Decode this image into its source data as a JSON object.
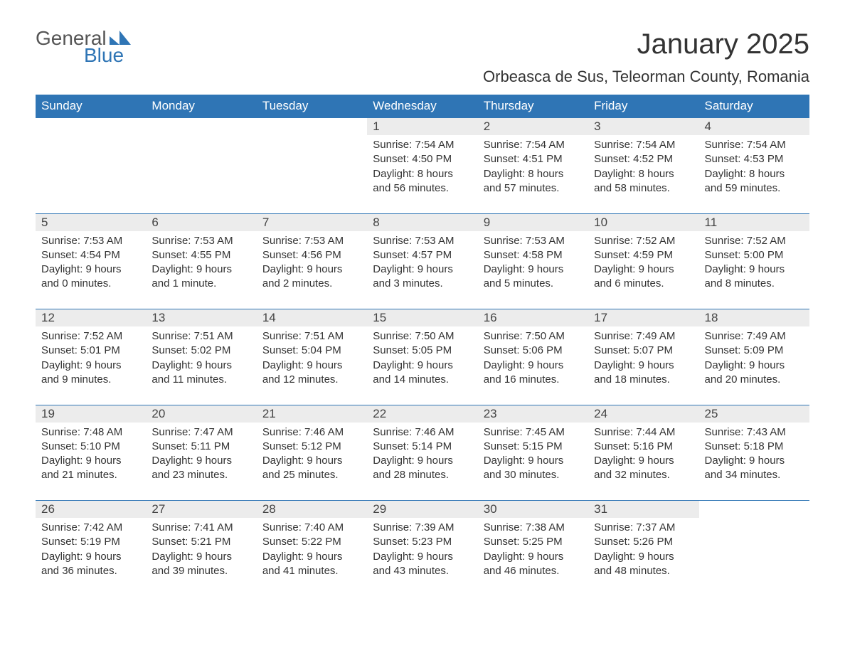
{
  "logo": {
    "word1": "General",
    "word2": "Blue"
  },
  "title": "January 2025",
  "location": "Orbeasca de Sus, Teleorman County, Romania",
  "colors": {
    "header_bg": "#2f75b5",
    "header_text": "#ffffff",
    "daynum_bg": "#ececec",
    "row_border": "#2f75b5",
    "body_text": "#333333",
    "logo_gray": "#555555",
    "logo_blue": "#2f75b5",
    "page_bg": "#ffffff"
  },
  "fonts": {
    "title_size_pt": 30,
    "location_size_pt": 16,
    "header_size_pt": 13,
    "cell_size_pt": 11
  },
  "weekdays": [
    "Sunday",
    "Monday",
    "Tuesday",
    "Wednesday",
    "Thursday",
    "Friday",
    "Saturday"
  ],
  "weeks": [
    [
      null,
      null,
      null,
      {
        "n": "1",
        "sunrise": "Sunrise: 7:54 AM",
        "sunset": "Sunset: 4:50 PM",
        "d1": "Daylight: 8 hours",
        "d2": "and 56 minutes."
      },
      {
        "n": "2",
        "sunrise": "Sunrise: 7:54 AM",
        "sunset": "Sunset: 4:51 PM",
        "d1": "Daylight: 8 hours",
        "d2": "and 57 minutes."
      },
      {
        "n": "3",
        "sunrise": "Sunrise: 7:54 AM",
        "sunset": "Sunset: 4:52 PM",
        "d1": "Daylight: 8 hours",
        "d2": "and 58 minutes."
      },
      {
        "n": "4",
        "sunrise": "Sunrise: 7:54 AM",
        "sunset": "Sunset: 4:53 PM",
        "d1": "Daylight: 8 hours",
        "d2": "and 59 minutes."
      }
    ],
    [
      {
        "n": "5",
        "sunrise": "Sunrise: 7:53 AM",
        "sunset": "Sunset: 4:54 PM",
        "d1": "Daylight: 9 hours",
        "d2": "and 0 minutes."
      },
      {
        "n": "6",
        "sunrise": "Sunrise: 7:53 AM",
        "sunset": "Sunset: 4:55 PM",
        "d1": "Daylight: 9 hours",
        "d2": "and 1 minute."
      },
      {
        "n": "7",
        "sunrise": "Sunrise: 7:53 AM",
        "sunset": "Sunset: 4:56 PM",
        "d1": "Daylight: 9 hours",
        "d2": "and 2 minutes."
      },
      {
        "n": "8",
        "sunrise": "Sunrise: 7:53 AM",
        "sunset": "Sunset: 4:57 PM",
        "d1": "Daylight: 9 hours",
        "d2": "and 3 minutes."
      },
      {
        "n": "9",
        "sunrise": "Sunrise: 7:53 AM",
        "sunset": "Sunset: 4:58 PM",
        "d1": "Daylight: 9 hours",
        "d2": "and 5 minutes."
      },
      {
        "n": "10",
        "sunrise": "Sunrise: 7:52 AM",
        "sunset": "Sunset: 4:59 PM",
        "d1": "Daylight: 9 hours",
        "d2": "and 6 minutes."
      },
      {
        "n": "11",
        "sunrise": "Sunrise: 7:52 AM",
        "sunset": "Sunset: 5:00 PM",
        "d1": "Daylight: 9 hours",
        "d2": "and 8 minutes."
      }
    ],
    [
      {
        "n": "12",
        "sunrise": "Sunrise: 7:52 AM",
        "sunset": "Sunset: 5:01 PM",
        "d1": "Daylight: 9 hours",
        "d2": "and 9 minutes."
      },
      {
        "n": "13",
        "sunrise": "Sunrise: 7:51 AM",
        "sunset": "Sunset: 5:02 PM",
        "d1": "Daylight: 9 hours",
        "d2": "and 11 minutes."
      },
      {
        "n": "14",
        "sunrise": "Sunrise: 7:51 AM",
        "sunset": "Sunset: 5:04 PM",
        "d1": "Daylight: 9 hours",
        "d2": "and 12 minutes."
      },
      {
        "n": "15",
        "sunrise": "Sunrise: 7:50 AM",
        "sunset": "Sunset: 5:05 PM",
        "d1": "Daylight: 9 hours",
        "d2": "and 14 minutes."
      },
      {
        "n": "16",
        "sunrise": "Sunrise: 7:50 AM",
        "sunset": "Sunset: 5:06 PM",
        "d1": "Daylight: 9 hours",
        "d2": "and 16 minutes."
      },
      {
        "n": "17",
        "sunrise": "Sunrise: 7:49 AM",
        "sunset": "Sunset: 5:07 PM",
        "d1": "Daylight: 9 hours",
        "d2": "and 18 minutes."
      },
      {
        "n": "18",
        "sunrise": "Sunrise: 7:49 AM",
        "sunset": "Sunset: 5:09 PM",
        "d1": "Daylight: 9 hours",
        "d2": "and 20 minutes."
      }
    ],
    [
      {
        "n": "19",
        "sunrise": "Sunrise: 7:48 AM",
        "sunset": "Sunset: 5:10 PM",
        "d1": "Daylight: 9 hours",
        "d2": "and 21 minutes."
      },
      {
        "n": "20",
        "sunrise": "Sunrise: 7:47 AM",
        "sunset": "Sunset: 5:11 PM",
        "d1": "Daylight: 9 hours",
        "d2": "and 23 minutes."
      },
      {
        "n": "21",
        "sunrise": "Sunrise: 7:46 AM",
        "sunset": "Sunset: 5:12 PM",
        "d1": "Daylight: 9 hours",
        "d2": "and 25 minutes."
      },
      {
        "n": "22",
        "sunrise": "Sunrise: 7:46 AM",
        "sunset": "Sunset: 5:14 PM",
        "d1": "Daylight: 9 hours",
        "d2": "and 28 minutes."
      },
      {
        "n": "23",
        "sunrise": "Sunrise: 7:45 AM",
        "sunset": "Sunset: 5:15 PM",
        "d1": "Daylight: 9 hours",
        "d2": "and 30 minutes."
      },
      {
        "n": "24",
        "sunrise": "Sunrise: 7:44 AM",
        "sunset": "Sunset: 5:16 PM",
        "d1": "Daylight: 9 hours",
        "d2": "and 32 minutes."
      },
      {
        "n": "25",
        "sunrise": "Sunrise: 7:43 AM",
        "sunset": "Sunset: 5:18 PM",
        "d1": "Daylight: 9 hours",
        "d2": "and 34 minutes."
      }
    ],
    [
      {
        "n": "26",
        "sunrise": "Sunrise: 7:42 AM",
        "sunset": "Sunset: 5:19 PM",
        "d1": "Daylight: 9 hours",
        "d2": "and 36 minutes."
      },
      {
        "n": "27",
        "sunrise": "Sunrise: 7:41 AM",
        "sunset": "Sunset: 5:21 PM",
        "d1": "Daylight: 9 hours",
        "d2": "and 39 minutes."
      },
      {
        "n": "28",
        "sunrise": "Sunrise: 7:40 AM",
        "sunset": "Sunset: 5:22 PM",
        "d1": "Daylight: 9 hours",
        "d2": "and 41 minutes."
      },
      {
        "n": "29",
        "sunrise": "Sunrise: 7:39 AM",
        "sunset": "Sunset: 5:23 PM",
        "d1": "Daylight: 9 hours",
        "d2": "and 43 minutes."
      },
      {
        "n": "30",
        "sunrise": "Sunrise: 7:38 AM",
        "sunset": "Sunset: 5:25 PM",
        "d1": "Daylight: 9 hours",
        "d2": "and 46 minutes."
      },
      {
        "n": "31",
        "sunrise": "Sunrise: 7:37 AM",
        "sunset": "Sunset: 5:26 PM",
        "d1": "Daylight: 9 hours",
        "d2": "and 48 minutes."
      },
      null
    ]
  ]
}
